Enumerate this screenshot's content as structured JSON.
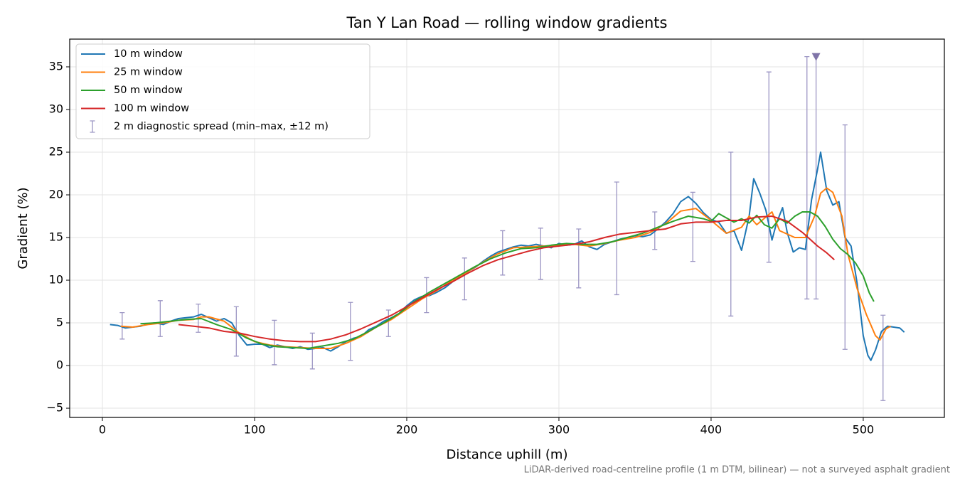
{
  "chart_data": {
    "type": "line",
    "title": "Tan Y Lan Road — rolling window gradients",
    "x_label": "Distance uphill (m)",
    "y_label": "Gradient (%)",
    "footnote": "LiDAR-derived road-centreline profile (1 m DTM, bilinear) — not a surveyed asphalt gradient",
    "xlim": [
      -21.5,
      553.3
    ],
    "ylim": [
      -6.08,
      38.25
    ],
    "xticks": [
      0,
      100,
      200,
      300,
      400,
      500
    ],
    "yticks": [
      {
        "value": -5,
        "label": "−5"
      },
      0,
      5,
      10,
      15,
      20,
      25,
      30,
      35
    ],
    "grid": true,
    "legend": "upper left",
    "series": [
      {
        "name": "10 m window",
        "color": "#1f77b4",
        "x": [
          5,
          10,
          15,
          20,
          25,
          30,
          35,
          40,
          45,
          50,
          55,
          60,
          65,
          70,
          75,
          80,
          85,
          90,
          95,
          100,
          105,
          110,
          115,
          120,
          125,
          130,
          135,
          140,
          145,
          150,
          155,
          160,
          165,
          170,
          175,
          180,
          185,
          190,
          195,
          200,
          205,
          210,
          215,
          220,
          225,
          230,
          235,
          240,
          245,
          250,
          255,
          260,
          265,
          270,
          275,
          280,
          285,
          290,
          295,
          300,
          305,
          310,
          315,
          320,
          325,
          330,
          335,
          340,
          345,
          350,
          355,
          360,
          365,
          370,
          375,
          380,
          385,
          390,
          395,
          400,
          405,
          410,
          415,
          420,
          425,
          428,
          432,
          436,
          440,
          443,
          447,
          450,
          454,
          458,
          462,
          466,
          470,
          472,
          476,
          480,
          484,
          488,
          492,
          496,
          500,
          503,
          505,
          508,
          512,
          516,
          520,
          524,
          527
        ],
        "values": [
          4.8,
          4.7,
          4.4,
          4.5,
          4.6,
          4.9,
          5.0,
          4.8,
          5.2,
          5.5,
          5.6,
          5.7,
          6.0,
          5.6,
          5.2,
          5.5,
          5.0,
          3.5,
          2.4,
          2.5,
          2.5,
          2.1,
          2.4,
          2.2,
          2.0,
          2.2,
          1.9,
          2.0,
          2.1,
          1.7,
          2.2,
          2.8,
          3.2,
          3.4,
          4.2,
          4.6,
          5.2,
          5.6,
          6.1,
          7.0,
          7.7,
          8.1,
          8.2,
          8.6,
          9.1,
          9.8,
          10.5,
          11.0,
          11.5,
          12.2,
          12.8,
          13.3,
          13.6,
          13.9,
          14.1,
          14.0,
          14.2,
          14.0,
          13.8,
          14.3,
          14.1,
          14.2,
          14.6,
          13.9,
          13.6,
          14.2,
          14.5,
          14.8,
          15.0,
          15.2,
          15.1,
          15.3,
          16.0,
          16.8,
          17.8,
          19.2,
          19.8,
          19.0,
          17.9,
          17.1,
          16.8,
          15.5,
          15.8,
          13.5,
          17.5,
          21.9,
          20.2,
          18.2,
          14.7,
          16.7,
          18.5,
          15.6,
          13.3,
          13.8,
          13.6,
          19.4,
          23.0,
          25.0,
          20.5,
          18.8,
          19.2,
          15.0,
          14.0,
          9.6,
          3.5,
          1.2,
          0.6,
          1.8,
          4.0,
          4.6,
          4.5,
          4.4,
          3.9
        ]
      },
      {
        "name": "25 m window",
        "color": "#ff7f0e",
        "x": [
          12,
          20,
          30,
          40,
          50,
          60,
          65,
          70,
          80,
          90,
          100,
          110,
          120,
          130,
          140,
          150,
          160,
          170,
          180,
          190,
          200,
          210,
          220,
          230,
          240,
          250,
          260,
          270,
          280,
          290,
          300,
          310,
          320,
          330,
          340,
          350,
          360,
          370,
          380,
          390,
          400,
          410,
          420,
          425,
          430,
          440,
          445,
          455,
          462,
          468,
          472,
          476,
          480,
          486,
          490,
          496,
          502,
          508,
          511,
          515,
          518
        ],
        "values": [
          4.6,
          4.5,
          4.8,
          5.0,
          5.3,
          5.4,
          5.7,
          5.7,
          5.2,
          3.8,
          2.8,
          2.4,
          2.2,
          2.1,
          2.0,
          2.0,
          2.6,
          3.4,
          4.5,
          5.4,
          6.6,
          7.8,
          8.8,
          10.0,
          11.0,
          12.1,
          13.1,
          13.8,
          13.9,
          14.0,
          14.1,
          14.2,
          14.0,
          14.3,
          14.7,
          15.0,
          15.6,
          16.6,
          18.1,
          18.4,
          17.0,
          15.5,
          16.2,
          17.5,
          16.5,
          18.0,
          15.8,
          15.0,
          15.0,
          17.5,
          20.2,
          20.8,
          20.3,
          17.5,
          13.0,
          9.0,
          6.0,
          3.5,
          3.0,
          4.3,
          4.6
        ]
      },
      {
        "name": "50 m window",
        "color": "#2ca02c",
        "x": [
          25,
          35,
          45,
          55,
          65,
          75,
          85,
          95,
          105,
          115,
          125,
          135,
          145,
          155,
          165,
          175,
          185,
          195,
          205,
          215,
          225,
          235,
          245,
          255,
          265,
          275,
          285,
          295,
          305,
          315,
          325,
          335,
          345,
          355,
          365,
          375,
          385,
          395,
          400,
          405,
          410,
          415,
          420,
          425,
          430,
          435,
          440,
          445,
          450,
          455,
          460,
          465,
          470,
          475,
          480,
          485,
          490,
          495,
          500,
          504,
          507
        ],
        "values": [
          4.9,
          5.0,
          5.2,
          5.4,
          5.5,
          4.8,
          4.2,
          3.2,
          2.5,
          2.2,
          2.1,
          2.0,
          2.3,
          2.6,
          3.1,
          4.0,
          5.0,
          6.1,
          7.5,
          8.6,
          9.6,
          10.6,
          11.6,
          12.5,
          13.2,
          13.7,
          13.8,
          14.1,
          14.3,
          14.2,
          14.2,
          14.5,
          15.0,
          15.5,
          16.2,
          16.9,
          17.5,
          17.2,
          16.9,
          17.8,
          17.3,
          16.8,
          17.2,
          16.7,
          17.6,
          16.5,
          16.1,
          17.2,
          16.7,
          17.5,
          18.0,
          18.0,
          17.5,
          16.3,
          14.8,
          13.7,
          13.0,
          12.0,
          10.5,
          8.5,
          7.5
        ]
      },
      {
        "name": "100 m window",
        "color": "#d62728",
        "x": [
          50,
          60,
          70,
          80,
          90,
          100,
          110,
          120,
          130,
          140,
          150,
          160,
          170,
          180,
          190,
          200,
          210,
          220,
          230,
          240,
          250,
          260,
          270,
          280,
          290,
          300,
          310,
          320,
          330,
          340,
          350,
          360,
          370,
          380,
          390,
          400,
          410,
          420,
          430,
          440,
          450,
          460,
          470,
          476,
          481
        ],
        "values": [
          4.8,
          4.6,
          4.4,
          4.0,
          3.8,
          3.4,
          3.1,
          2.9,
          2.8,
          2.8,
          3.1,
          3.6,
          4.3,
          5.1,
          5.9,
          6.9,
          7.9,
          8.9,
          9.8,
          10.8,
          11.7,
          12.4,
          12.9,
          13.4,
          13.8,
          14.0,
          14.2,
          14.5,
          15.0,
          15.4,
          15.6,
          15.8,
          16.0,
          16.6,
          16.8,
          16.8,
          17.0,
          17.0,
          17.4,
          17.5,
          16.9,
          15.6,
          14.0,
          13.2,
          12.4
        ]
      }
    ],
    "error_bars": {
      "name": "2 m diagnostic spread (min–max, ±12 m)",
      "color": "#9c96c4",
      "x": [
        13,
        38,
        63,
        88,
        113,
        138,
        163,
        188,
        213,
        238,
        263,
        288,
        313,
        338,
        363,
        388,
        413,
        438,
        463,
        469,
        488,
        513
      ],
      "low": [
        3.1,
        3.4,
        3.9,
        1.1,
        0.1,
        -0.4,
        0.6,
        3.4,
        6.2,
        7.7,
        10.6,
        10.1,
        9.1,
        8.3,
        13.6,
        12.2,
        5.8,
        12.1,
        7.8,
        7.8,
        1.9,
        -4.1
      ],
      "high": [
        6.2,
        7.6,
        7.2,
        6.9,
        5.3,
        3.8,
        7.4,
        6.5,
        10.3,
        12.6,
        15.8,
        16.1,
        16.0,
        21.5,
        18.0,
        20.3,
        25.0,
        34.4,
        36.2,
        36.2,
        28.2,
        5.9
      ]
    },
    "marker": {
      "x": 469,
      "y": 36.2,
      "color": "#7f74a8"
    }
  }
}
